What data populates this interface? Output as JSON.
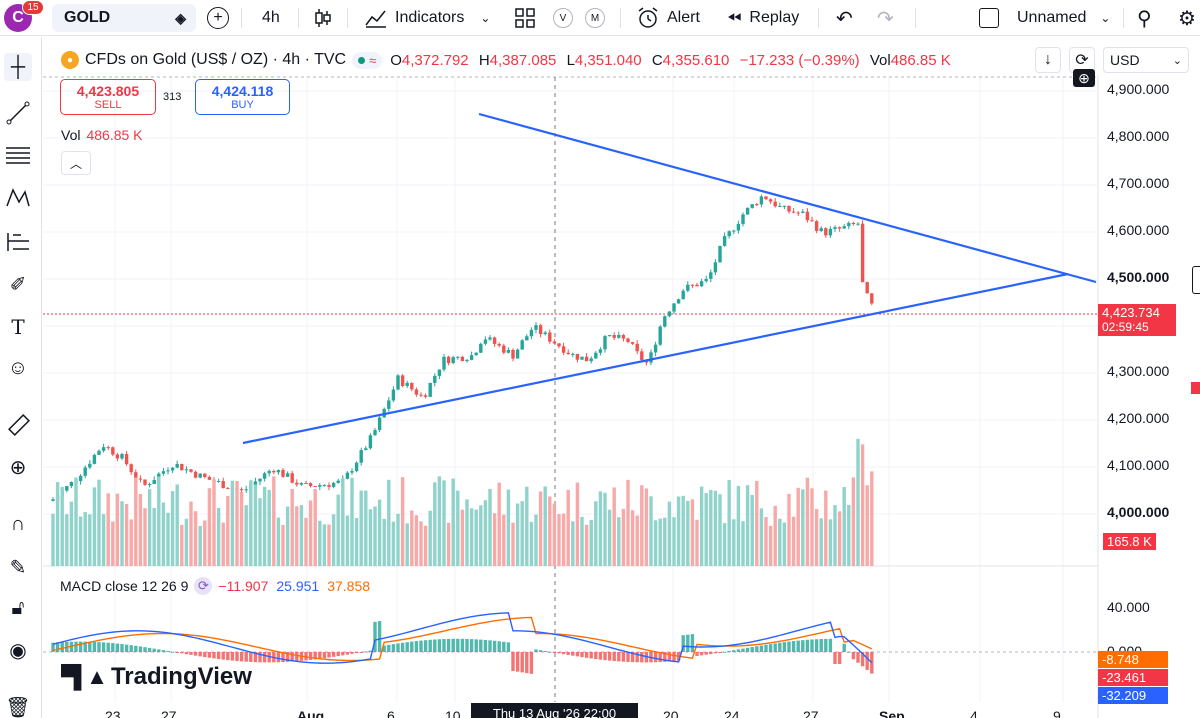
{
  "toolbar": {
    "notifications": "15",
    "avatar_letter": "C",
    "symbol": "GOLD",
    "interval": "4h",
    "indicators_label": "Indicators",
    "v_label": "V",
    "m_label": "M",
    "alert_label": "Alert",
    "replay_label": "Replay",
    "layout_name": "Unnamed"
  },
  "legend": {
    "title": "CFDs on Gold (US$ / OZ) · 4h · TVC",
    "open_label": "O",
    "open": "4,372.792",
    "high_label": "H",
    "high": "4,387.085",
    "low_label": "L",
    "low": "4,351.040",
    "close_label": "C",
    "close": "4,355.610",
    "change": "−17.233 (−0.39%)",
    "vol_label": "Vol",
    "vol": "486.85 K",
    "currency": "USD"
  },
  "trade": {
    "sell_price": "4,423.805",
    "sell_label": "SELL",
    "spread": "313",
    "buy_price": "4,424.118",
    "buy_label": "BUY"
  },
  "volume_legend": {
    "label": "Vol",
    "value": "486.85 K"
  },
  "macd_legend": {
    "label": "MACD close 12 26 9",
    "hist": "−11.907",
    "macd": "25.951",
    "signal": "37.858"
  },
  "brand": "TradingView",
  "price_axis": {
    "ticks": [
      "4,900.000",
      "4,800.000",
      "4,700.000",
      "4,600.000",
      "4,500.000",
      "4,300.000",
      "4,200.000",
      "4,100.000",
      "4,000.000"
    ],
    "last_price": "4,423.734",
    "countdown": "02:59:45",
    "volume_tag": "165.8 K",
    "macd_ticks": [
      "40.000",
      "0.000"
    ],
    "macd_tags": [
      "-8.748",
      "-23.461",
      "-32.209"
    ]
  },
  "time_axis": {
    "labels": [
      "23",
      "27",
      "Aug",
      "6",
      "10",
      "20",
      "24",
      "27",
      "Sep",
      "4",
      "9"
    ],
    "crosshair": "Thu 13 Aug '26   22:00"
  },
  "colors": {
    "up": "#26a69a",
    "down": "#ef5350",
    "trendline": "#2962ff",
    "macd": "#2962ff",
    "signal": "#ff6d00",
    "accent": "#2962ff"
  }
}
